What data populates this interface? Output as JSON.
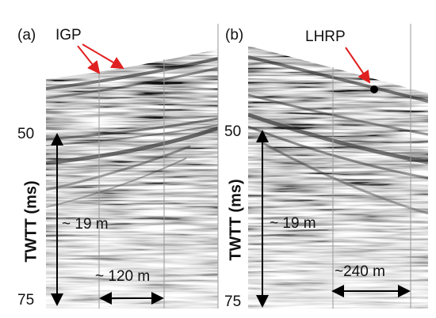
{
  "panels": [
    {
      "tag": "(a)",
      "feature": "IGP",
      "tick_top": "50",
      "tick_bottom": "75",
      "axis_label": "TWTT (ms)",
      "depth": "~ 19 m",
      "width": "~ 120 m"
    },
    {
      "tag": "(b)",
      "feature": "LHRP",
      "tick_top": "50",
      "tick_bottom": "75",
      "axis_label": "TWTT (ms)",
      "depth": "~ 19 m",
      "width": "~240 m"
    }
  ]
}
